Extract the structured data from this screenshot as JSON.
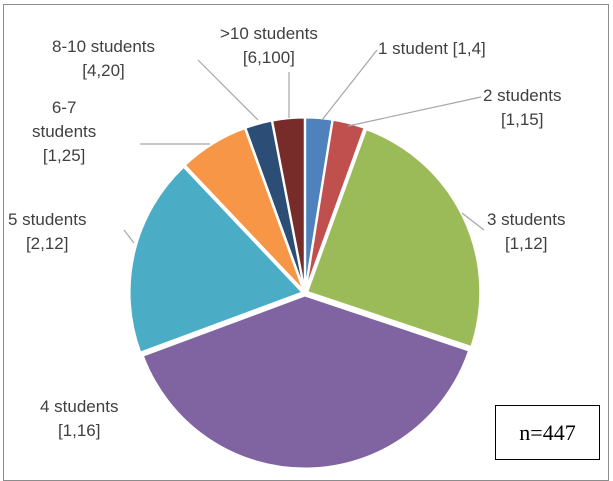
{
  "chart_data": {
    "type": "pie",
    "title": "",
    "categories": [
      "1 student",
      "2 students",
      "3 students",
      "4 students",
      "5 students",
      "6-7 students",
      "8-10 students",
      ">10 students"
    ],
    "values": [
      2.5,
      3.0,
      24.5,
      39.0,
      18.5,
      6.5,
      2.5,
      3.0
    ],
    "ranges": [
      "[1,4]",
      "[1,15]",
      "[1,12]",
      "[1,16]",
      "[2,12]",
      "[1,25]",
      "[4,20]",
      "[6,100]"
    ],
    "colors": [
      "#4f81bd",
      "#c0504d",
      "#9bbb59",
      "#8064a2",
      "#4bacc6",
      "#f79646",
      "#2c4d75",
      "#772c2a"
    ],
    "labels": [
      {
        "lines": [
          "1 student [1,4]"
        ]
      },
      {
        "lines": [
          "2 students",
          "[1,15]"
        ]
      },
      {
        "lines": [
          "3 students",
          "[1,12]"
        ]
      },
      {
        "lines": [
          "4 students",
          "[1,16]"
        ]
      },
      {
        "lines": [
          "5 students",
          "[2,12]"
        ]
      },
      {
        "lines": [
          "6-7",
          "students",
          "[1,25]"
        ]
      },
      {
        "lines": [
          "8-10 students",
          "[4,20]"
        ]
      },
      {
        "lines": [
          ">10 students",
          "[6,100]"
        ]
      }
    ],
    "annotation": "n=447",
    "legend": "none"
  }
}
